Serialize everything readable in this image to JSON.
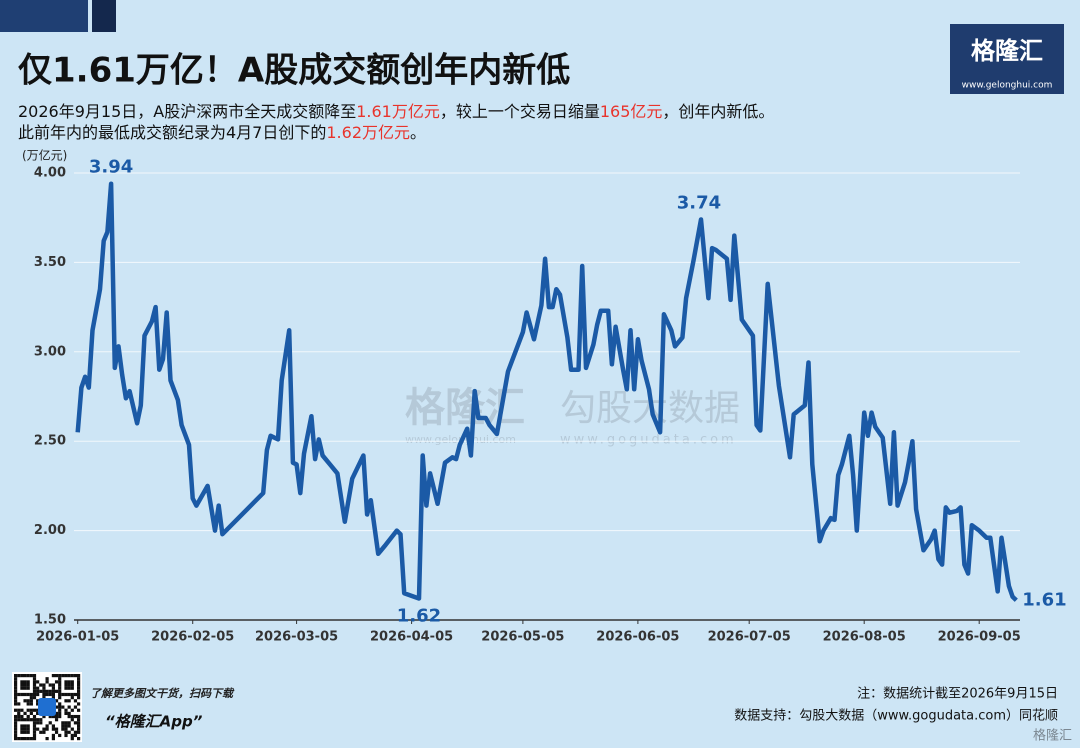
{
  "chart_data": {
    "type": "line",
    "title": "仅1.61万亿！A股成交额创年内新低",
    "subtitle": [
      [
        "2026年9月15日，A股沪深两市全天成交额降至",
        "1.61万亿元",
        "，较上一个交易日缩量",
        "165亿元",
        "，创年内新低。"
      ],
      [
        "此前年内的最低成交额纪录为4月7日创下的",
        "1.62万亿元",
        "。"
      ]
    ],
    "highlight_color": "#e8342c",
    "y_label": "(万亿元)",
    "x": [
      "2026-01-05",
      "2026-01-06",
      "2026-01-07",
      "2026-01-08",
      "2026-01-09",
      "2026-01-11",
      "2026-01-12",
      "2026-01-13",
      "2026-01-14",
      "2026-01-15",
      "2026-01-16",
      "2026-01-17",
      "2026-01-18",
      "2026-01-19",
      "2026-01-21",
      "2026-01-22",
      "2026-01-23",
      "2026-01-25",
      "2026-01-26",
      "2026-01-27",
      "2026-01-28",
      "2026-01-29",
      "2026-01-30",
      "2026-02-01",
      "2026-02-02",
      "2026-02-04",
      "2026-02-05",
      "2026-02-06",
      "2026-02-09",
      "2026-02-11",
      "2026-02-12",
      "2026-02-13",
      "2026-02-24",
      "2026-02-25",
      "2026-02-26",
      "2026-02-28",
      "2026-03-01",
      "2026-03-03",
      "2026-03-04",
      "2026-03-05",
      "2026-03-06",
      "2026-03-07",
      "2026-03-09",
      "2026-03-10",
      "2026-03-11",
      "2026-03-12",
      "2026-03-14",
      "2026-03-16",
      "2026-03-18",
      "2026-03-20",
      "2026-03-23",
      "2026-03-24",
      "2026-03-25",
      "2026-03-27",
      "2026-03-29",
      "2026-04-01",
      "2026-04-02",
      "2026-04-03",
      "2026-04-07",
      "2026-04-08",
      "2026-04-09",
      "2026-04-10",
      "2026-04-12",
      "2026-04-14",
      "2026-04-16",
      "2026-04-17",
      "2026-04-18",
      "2026-04-20",
      "2026-04-21",
      "2026-04-22",
      "2026-04-23",
      "2026-04-25",
      "2026-04-26",
      "2026-04-28",
      "2026-05-01",
      "2026-05-05",
      "2026-05-06",
      "2026-05-08",
      "2026-05-10",
      "2026-05-11",
      "2026-05-12",
      "2026-05-13",
      "2026-05-14",
      "2026-05-15",
      "2026-05-17",
      "2026-05-18",
      "2026-05-20",
      "2026-05-21",
      "2026-05-22",
      "2026-05-24",
      "2026-05-25",
      "2026-05-26",
      "2026-05-28",
      "2026-05-29",
      "2026-05-30",
      "2026-06-01",
      "2026-06-02",
      "2026-06-03",
      "2026-06-04",
      "2026-06-05",
      "2026-06-06",
      "2026-06-08",
      "2026-06-09",
      "2026-06-11",
      "2026-06-12",
      "2026-06-14",
      "2026-06-15",
      "2026-06-17",
      "2026-06-18",
      "2026-06-20",
      "2026-06-22",
      "2026-06-24",
      "2026-06-25",
      "2026-06-26",
      "2026-06-29",
      "2026-06-30",
      "2026-07-01",
      "2026-07-03",
      "2026-07-05",
      "2026-07-06",
      "2026-07-07",
      "2026-07-08",
      "2026-07-10",
      "2026-07-13",
      "2026-07-16",
      "2026-07-17",
      "2026-07-20",
      "2026-07-21",
      "2026-07-22",
      "2026-07-24",
      "2026-07-25",
      "2026-07-27",
      "2026-07-28",
      "2026-07-29",
      "2026-07-30",
      "2026-08-01",
      "2026-08-02",
      "2026-08-03",
      "2026-08-05",
      "2026-08-06",
      "2026-08-07",
      "2026-08-08",
      "2026-08-10",
      "2026-08-12",
      "2026-08-13",
      "2026-08-14",
      "2026-08-16",
      "2026-08-17",
      "2026-08-18",
      "2026-08-19",
      "2026-08-21",
      "2026-08-23",
      "2026-08-24",
      "2026-08-25",
      "2026-08-26",
      "2026-08-27",
      "2026-08-28",
      "2026-08-30",
      "2026-08-31",
      "2026-09-01",
      "2026-09-02",
      "2026-09-03",
      "2026-09-05",
      "2026-09-07",
      "2026-09-08",
      "2026-09-10",
      "2026-09-11",
      "2026-09-13",
      "2026-09-14",
      "2026-09-15"
    ],
    "values": [
      2.55,
      2.8,
      2.86,
      2.8,
      3.12,
      3.35,
      3.62,
      3.67,
      3.94,
      2.91,
      3.03,
      2.87,
      2.74,
      2.78,
      2.6,
      2.7,
      3.09,
      3.17,
      3.25,
      2.9,
      2.96,
      3.22,
      2.84,
      2.73,
      2.59,
      2.48,
      2.18,
      2.14,
      2.25,
      2.0,
      2.14,
      1.98,
      2.21,
      2.45,
      2.53,
      2.51,
      2.84,
      3.12,
      2.38,
      2.37,
      2.21,
      2.43,
      2.64,
      2.4,
      2.51,
      2.42,
      2.37,
      2.32,
      2.05,
      2.29,
      2.42,
      2.09,
      2.17,
      1.87,
      1.92,
      2.0,
      1.98,
      1.65,
      1.62,
      2.42,
      2.14,
      2.32,
      2.15,
      2.38,
      2.41,
      2.4,
      2.48,
      2.57,
      2.42,
      2.78,
      2.63,
      2.63,
      2.59,
      2.54,
      2.89,
      3.11,
      3.22,
      3.07,
      3.26,
      3.52,
      3.25,
      3.25,
      3.35,
      3.32,
      3.08,
      2.9,
      2.9,
      3.48,
      2.91,
      3.04,
      3.15,
      3.23,
      3.23,
      2.93,
      3.14,
      2.9,
      2.79,
      3.12,
      2.79,
      3.07,
      2.95,
      2.79,
      2.65,
      2.55,
      3.21,
      3.12,
      3.03,
      3.08,
      3.3,
      3.51,
      3.74,
      3.3,
      3.58,
      3.57,
      3.52,
      3.29,
      3.65,
      3.18,
      3.12,
      3.09,
      2.59,
      2.56,
      3.38,
      2.81,
      2.41,
      2.65,
      2.7,
      2.94,
      2.37,
      1.94,
      2.0,
      2.07,
      2.06,
      2.31,
      2.37,
      2.53,
      2.31,
      2.0,
      2.66,
      2.53,
      2.66,
      2.58,
      2.52,
      2.15,
      2.55,
      2.14,
      2.27,
      2.38,
      2.5,
      2.12,
      1.89,
      1.95,
      2.0,
      1.84,
      1.81,
      2.13,
      2.1,
      2.11,
      2.13,
      1.81,
      1.76,
      2.03,
      2.0,
      1.96,
      1.96,
      1.66,
      1.96,
      1.69,
      1.63,
      1.61
    ],
    "color": "#1b5aa6",
    "xlim": [
      "2026-01-04",
      "2026-09-16"
    ],
    "xticks": [
      "2026-01-05",
      "2026-02-05",
      "2026-03-05",
      "2026-04-05",
      "2026-05-05",
      "2026-06-05",
      "2026-07-05",
      "2026-08-05",
      "2026-09-05"
    ],
    "ylim": [
      1.5,
      4.0
    ],
    "yticks": [
      {
        "value": 1.5,
        "label": "1.50"
      },
      {
        "value": 2,
        "label": "2.00"
      },
      {
        "value": 2.5,
        "label": "2.50"
      },
      {
        "value": 3,
        "label": "3.00"
      },
      {
        "value": 3.5,
        "label": "3.50"
      },
      {
        "value": 4,
        "label": "4.00"
      }
    ],
    "grid": true
  },
  "brand": {
    "name": "格隆汇",
    "url": "www.gelonghui.com"
  },
  "watermark": {
    "left": "格隆汇",
    "left_url": "www.gelonghui.com",
    "right": "勾股大数据",
    "right_url": "www.gogudata.com"
  },
  "footer": {
    "promo": "了解更多图文干货，扫码下载",
    "app": "“格隆汇App”",
    "note": "注：数据统计截至2026年9月15日",
    "source": "数据支持：勾股大数据（www.gogudata.com）同花顺",
    "corner": "格隆汇"
  }
}
